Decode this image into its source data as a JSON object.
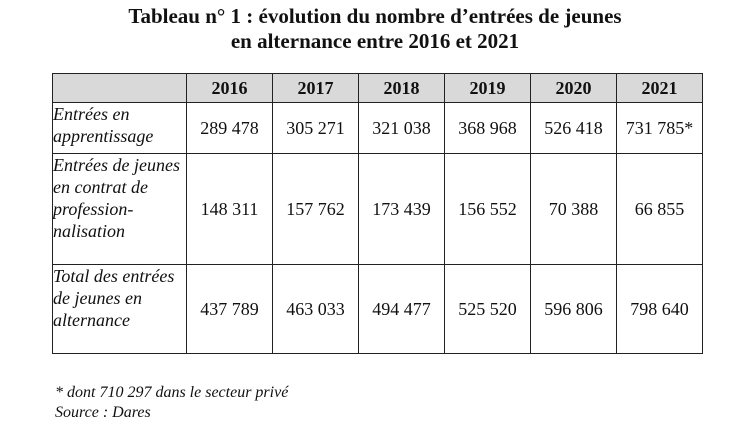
{
  "title": {
    "line1": "Tableau n° 1 :  évolution du nombre d’entrées de jeunes",
    "line2": "en alternance entre 2016 et 2021"
  },
  "table": {
    "columns": [
      "2016",
      "2017",
      "2018",
      "2019",
      "2020",
      "2021"
    ],
    "rows": [
      {
        "label": "Entrées en apprentissage",
        "values": [
          "289 478",
          "305 271",
          "321 038",
          "368 968",
          "526 418",
          "731 785*"
        ]
      },
      {
        "label": "Entrées de jeunes en contrat de profession-nalisation",
        "values": [
          "148 311",
          "157 762",
          "173 439",
          "156 552",
          "70 388",
          "66 855"
        ]
      },
      {
        "label": "Total des entrées de jeunes en alternance",
        "values": [
          "437 789",
          "463 033",
          "494 477",
          "525 520",
          "596 806",
          "798 640"
        ]
      }
    ]
  },
  "notes": {
    "footnote": "* dont 710 297 dans le secteur privé",
    "source": "Source : Dares"
  }
}
